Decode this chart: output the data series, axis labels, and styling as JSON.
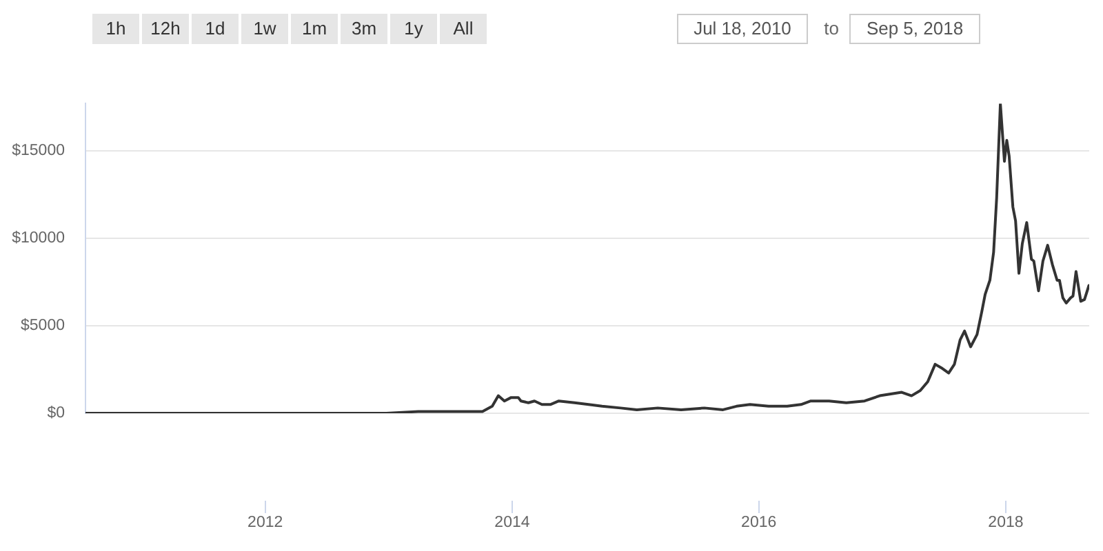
{
  "chart_data": {
    "type": "line",
    "annotations": [
      "1h",
      "12h",
      "1d",
      "1w",
      "1m",
      "3m",
      "1y",
      "All",
      "Jul 18, 2010",
      "to",
      "Sep 5, 2018"
    ],
    "x": [
      "2010-07-18",
      "2011-06-01",
      "2012-06-01",
      "2012-12-25",
      "2013-03-29",
      "2013-05-26",
      "2013-10-05",
      "2013-11-03",
      "2013-11-21",
      "2013-12-09",
      "2013-12-29",
      "2014-01-19",
      "2014-01-27",
      "2014-02-18",
      "2014-03-08",
      "2014-03-30",
      "2014-04-24",
      "2014-05-19",
      "2014-07-05",
      "2014-08-15",
      "2014-09-24",
      "2014-11-18",
      "2015-01-05",
      "2015-03-08",
      "2015-05-16",
      "2015-07-24",
      "2015-09-17",
      "2015-10-27",
      "2015-12-06",
      "2016-01-30",
      "2016-03-25",
      "2016-05-05",
      "2016-06-03",
      "2016-07-27",
      "2016-09-16",
      "2016-11-09",
      "2016-12-24",
      "2017-02-27",
      "2017-03-28",
      "2017-04-23",
      "2017-05-15",
      "2017-06-06",
      "2017-06-24",
      "2017-07-16",
      "2017-08-02",
      "2017-08-19",
      "2017-09-01",
      "2017-09-19",
      "2017-10-08",
      "2017-10-22",
      "2017-11-01",
      "2017-11-15",
      "2017-11-26",
      "2017-12-05",
      "2017-12-16",
      "2017-12-28",
      "2018-01-04",
      "2018-01-11",
      "2018-01-22",
      "2018-01-30",
      "2018-02-09",
      "2018-02-19",
      "2018-03-04",
      "2018-03-18",
      "2018-03-25",
      "2018-04-08",
      "2018-04-21",
      "2018-05-05",
      "2018-05-19",
      "2018-06-02",
      "2018-06-09",
      "2018-06-19",
      "2018-06-29",
      "2018-07-12",
      "2018-07-19",
      "2018-07-28",
      "2018-08-11",
      "2018-08-22",
      "2018-09-04"
    ],
    "values": [
      0,
      0,
      0,
      0,
      100,
      100,
      100,
      400,
      1000,
      700,
      900,
      900,
      700,
      600,
      700,
      500,
      500,
      700,
      600,
      500,
      400,
      300,
      200,
      300,
      200,
      300,
      200,
      400,
      500,
      400,
      400,
      500,
      700,
      700,
      600,
      700,
      1000,
      1200,
      1000,
      1300,
      1800,
      2800,
      2600,
      2300,
      2800,
      4200,
      4700,
      3800,
      4500,
      5800,
      6800,
      7600,
      9200,
      12300,
      17700,
      14400,
      15600,
      14700,
      11800,
      11000,
      8000,
      9700,
      10900,
      8800,
      8700,
      7000,
      8700,
      9600,
      8500,
      7600,
      7600,
      6600,
      6300,
      6600,
      6700,
      8100,
      6400,
      6500,
      7300
    ],
    "color": "#333333",
    "xlim": [
      "2010-07-18",
      "2018-09-05"
    ],
    "xticks": [
      "2012",
      "2014",
      "2016",
      "2018"
    ],
    "ylim": [
      0,
      17700
    ],
    "yticks": [
      {
        "value": 0,
        "label": "$0"
      },
      {
        "value": 5000,
        "label": "$5000"
      },
      {
        "value": 10000,
        "label": "$10000"
      },
      {
        "value": 15000,
        "label": "$15000"
      }
    ],
    "grid": "y"
  }
}
